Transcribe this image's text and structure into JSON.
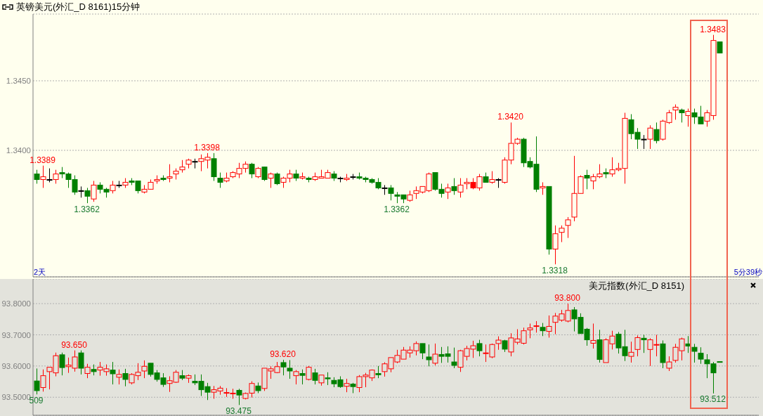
{
  "chart_data": [
    {
      "type": "candlestick",
      "title": "英镑美元(外汇_D 8161)15分钟",
      "categories": [
        null,
        null,
        null,
        null,
        null,
        null,
        null,
        null,
        null,
        null,
        null,
        null,
        null,
        null,
        null,
        null,
        null,
        null,
        null,
        null,
        null,
        null,
        null,
        null,
        null,
        null,
        null,
        null,
        null,
        null,
        null,
        null,
        null,
        null,
        null,
        null,
        null,
        null,
        null,
        null,
        null,
        null,
        null,
        null,
        null,
        null,
        null,
        null,
        null,
        null,
        null,
        null,
        null,
        null,
        null,
        null,
        null,
        null,
        null,
        null,
        null,
        null,
        null,
        null,
        null,
        null,
        null,
        null,
        null,
        null,
        null,
        null,
        null,
        null,
        null,
        null,
        null,
        null,
        null,
        null,
        null,
        null,
        null,
        null,
        null,
        null,
        null,
        null,
        null,
        null,
        null,
        null,
        null,
        null,
        null,
        null,
        null,
        null,
        null,
        null,
        null,
        null,
        null,
        null,
        null,
        null,
        null,
        null,
        null
      ],
      "ohlc": [
        [
          1.3383,
          1.3386,
          1.3376,
          1.3379
        ],
        [
          1.3379,
          1.3389,
          1.3373,
          1.3381
        ],
        [
          1.3379,
          1.3387,
          1.3377,
          1.3379
        ],
        [
          1.3379,
          1.3386,
          1.3376,
          1.3383
        ],
        [
          1.3384,
          1.3388,
          1.338,
          1.3383
        ],
        [
          1.3383,
          1.3384,
          1.3373,
          1.3379
        ],
        [
          1.3379,
          1.3382,
          1.3368,
          1.337
        ],
        [
          1.3371,
          1.3374,
          1.3366,
          1.3371
        ],
        [
          1.3371,
          1.3373,
          1.3362,
          1.3367
        ],
        [
          1.3365,
          1.3378,
          1.3363,
          1.3375
        ],
        [
          1.3375,
          1.3377,
          1.3369,
          1.3372
        ],
        [
          1.3372,
          1.3373,
          1.3366,
          1.337
        ],
        [
          1.3371,
          1.3378,
          1.3369,
          1.3375
        ],
        [
          1.3375,
          1.3378,
          1.3373,
          1.3375
        ],
        [
          1.3375,
          1.338,
          1.3373,
          1.3377
        ],
        [
          1.3378,
          1.338,
          1.3375,
          1.3377
        ],
        [
          1.3378,
          1.3378,
          1.3369,
          1.3371
        ],
        [
          1.337,
          1.3375,
          1.3369,
          1.3372
        ],
        [
          1.3372,
          1.3379,
          1.3372,
          1.3377
        ],
        [
          1.3378,
          1.3382,
          1.3376,
          1.3379
        ],
        [
          1.338,
          1.3382,
          1.3378,
          1.3379
        ],
        [
          1.338,
          1.339,
          1.3377,
          1.3381
        ],
        [
          1.3383,
          1.3387,
          1.3379,
          1.3385
        ],
        [
          1.3386,
          1.3393,
          1.3384,
          1.3388
        ],
        [
          1.339,
          1.3394,
          1.3387,
          1.3393
        ],
        [
          1.3392,
          1.3394,
          1.3387,
          1.3392
        ],
        [
          1.3392,
          1.3397,
          1.3385,
          1.3394
        ],
        [
          1.3393,
          1.3398,
          1.3387,
          1.3395
        ],
        [
          1.3394,
          1.3398,
          1.3378,
          1.3381
        ],
        [
          1.338,
          1.3384,
          1.3373,
          1.3377
        ],
        [
          1.3378,
          1.3384,
          1.3377,
          1.338
        ],
        [
          1.3381,
          1.3385,
          1.338,
          1.3384
        ],
        [
          1.3383,
          1.3391,
          1.338,
          1.3387
        ],
        [
          1.3387,
          1.3392,
          1.3384,
          1.339
        ],
        [
          1.339,
          1.3391,
          1.338,
          1.3383
        ],
        [
          1.3381,
          1.3388,
          1.338,
          1.3387
        ],
        [
          1.3388,
          1.3388,
          1.3378,
          1.3379
        ],
        [
          1.338,
          1.3384,
          1.3373,
          1.3383
        ],
        [
          1.3383,
          1.3384,
          1.3375,
          1.3376
        ],
        [
          1.3377,
          1.3381,
          1.3373,
          1.338
        ],
        [
          1.338,
          1.3386,
          1.3377,
          1.3383
        ],
        [
          1.3383,
          1.3386,
          1.3378,
          1.338
        ],
        [
          1.338,
          1.3384,
          1.3379,
          1.3381
        ],
        [
          1.338,
          1.3381,
          1.3377,
          1.3379
        ],
        [
          1.3379,
          1.3384,
          1.3378,
          1.3381
        ],
        [
          1.338,
          1.3386,
          1.338,
          1.3381
        ],
        [
          1.338,
          1.3386,
          1.338,
          1.3384
        ],
        [
          1.3383,
          1.3385,
          1.3378,
          1.338
        ],
        [
          1.338,
          1.3381,
          1.3377,
          1.338
        ],
        [
          1.3379,
          1.3383,
          1.3378,
          1.338
        ],
        [
          1.3381,
          1.3383,
          1.3379,
          1.3381
        ],
        [
          1.3381,
          1.3384,
          1.3379,
          1.338
        ],
        [
          1.338,
          1.3381,
          1.3377,
          1.3379
        ],
        [
          1.3379,
          1.338,
          1.3376,
          1.3377
        ],
        [
          1.3377,
          1.338,
          1.3372,
          1.3373
        ],
        [
          1.3373,
          1.3375,
          1.3368,
          1.3373
        ],
        [
          1.3373,
          1.3375,
          1.3364,
          1.3369
        ],
        [
          1.3368,
          1.337,
          1.3362,
          1.3367
        ],
        [
          1.3368,
          1.3368,
          1.3362,
          1.3365
        ],
        [
          1.3364,
          1.3371,
          1.3363,
          1.3368
        ],
        [
          1.3369,
          1.3374,
          1.3365,
          1.3371
        ],
        [
          1.337,
          1.3374,
          1.3369,
          1.3374
        ],
        [
          1.3371,
          1.3384,
          1.337,
          1.3383
        ],
        [
          1.3384,
          1.3384,
          1.3371,
          1.3372
        ],
        [
          1.3372,
          1.3376,
          1.3366,
          1.3369
        ],
        [
          1.337,
          1.3376,
          1.3365,
          1.3373
        ],
        [
          1.3374,
          1.338,
          1.3368,
          1.3371
        ],
        [
          1.337,
          1.338,
          1.3366,
          1.3375
        ],
        [
          1.3376,
          1.338,
          1.3372,
          1.3377
        ],
        [
          1.3377,
          1.338,
          1.3372,
          1.3373
        ],
        [
          1.3373,
          1.3383,
          1.3371,
          1.3381
        ],
        [
          1.3381,
          1.3384,
          1.3377,
          1.3377
        ],
        [
          1.3377,
          1.3385,
          1.3376,
          1.3379
        ],
        [
          1.3379,
          1.338,
          1.3373,
          1.3379
        ],
        [
          1.3377,
          1.3395,
          1.3376,
          1.3393
        ],
        [
          1.3393,
          1.342,
          1.339,
          1.3405
        ],
        [
          1.3405,
          1.3409,
          1.3404,
          1.3408
        ],
        [
          1.3408,
          1.3409,
          1.3388,
          1.3391
        ],
        [
          1.3392,
          1.3395,
          1.3387,
          1.3388
        ],
        [
          1.339,
          1.341,
          1.337,
          1.3372
        ],
        [
          1.3373,
          1.3377,
          1.3368,
          1.3374
        ],
        [
          1.3374,
          1.3374,
          1.3325,
          1.3329
        ],
        [
          1.3329,
          1.3346,
          1.3318,
          1.334
        ],
        [
          1.3341,
          1.3346,
          1.3334,
          1.3344
        ],
        [
          1.3346,
          1.3352,
          1.3337,
          1.335
        ],
        [
          1.3352,
          1.3396,
          1.3349,
          1.3369
        ],
        [
          1.3369,
          1.3382,
          1.3369,
          1.3381
        ],
        [
          1.3382,
          1.3386,
          1.3372,
          1.338
        ],
        [
          1.3378,
          1.3383,
          1.3372,
          1.3381
        ],
        [
          1.3381,
          1.339,
          1.338,
          1.3383
        ],
        [
          1.3384,
          1.3387,
          1.338,
          1.3383
        ],
        [
          1.3383,
          1.3395,
          1.3381,
          1.3386
        ],
        [
          1.3386,
          1.3391,
          1.3385,
          1.3387
        ],
        [
          1.3387,
          1.3427,
          1.3376,
          1.3423
        ],
        [
          1.3422,
          1.3426,
          1.3408,
          1.3412
        ],
        [
          1.3413,
          1.3416,
          1.3401,
          1.3408
        ],
        [
          1.3408,
          1.3411,
          1.3401,
          1.3408
        ],
        [
          1.3408,
          1.3418,
          1.3401,
          1.3416
        ],
        [
          1.3415,
          1.342,
          1.3405,
          1.3407
        ],
        [
          1.3408,
          1.3422,
          1.3407,
          1.3421
        ],
        [
          1.342,
          1.3429,
          1.3419,
          1.3427
        ],
        [
          1.3429,
          1.3433,
          1.3422,
          1.3431
        ],
        [
          1.3429,
          1.343,
          1.342,
          1.3427
        ],
        [
          1.3425,
          1.343,
          1.3417,
          1.3428
        ],
        [
          1.3427,
          1.343,
          1.3419,
          1.3424
        ],
        [
          1.3424,
          1.3432,
          1.3419,
          1.3419
        ],
        [
          1.3421,
          1.3429,
          1.3417,
          1.3427
        ],
        [
          1.3425,
          1.3483,
          1.3422,
          1.3479
        ],
        [
          1.3478,
          1.3478,
          1.347,
          1.347
        ]
      ],
      "colors": [
        "#008000",
        "#ff0000",
        "#000000",
        "#ff0000",
        "#008000",
        "#008000",
        "#008000",
        "#000000",
        "#008000",
        "#ff0000",
        "#008000",
        "#008000",
        "#ff0000",
        "#000000",
        "#ff0000",
        "#008000",
        "#008000",
        "#ff0000",
        "#ff0000",
        "#ff0000",
        "#008000",
        "#ff0000",
        "#ff0000",
        "#ff0000",
        "#ff0000",
        "#000000",
        "#ff0000",
        "#ff0000",
        "#008000",
        "#008000",
        "#ff0000",
        "#ff0000",
        "#ff0000",
        "#ff0000",
        "#008000",
        "#ff0000",
        "#008000",
        "#ff0000",
        "#008000",
        "#ff0000",
        "#ff0000",
        "#008000",
        "#ff0000",
        "#008000",
        "#ff0000",
        "#ff0000",
        "#ff0000",
        "#008000",
        "#000000",
        "#ff0000",
        "#000000",
        "#008000",
        "#008000",
        "#008000",
        "#008000",
        "#000000",
        "#008000",
        "#008000",
        "#008000",
        "#ff0000",
        "#ff0000",
        "#ff0000",
        "#ff0000",
        "#008000",
        "#008000",
        "#ff0000",
        "#008000",
        "#ff0000",
        "#ff0000",
        "#ff0000",
        "#ff0000",
        "#008000",
        "#ff0000",
        "#000000",
        "#ff0000",
        "#ff0000",
        "#ff0000",
        "#008000",
        "#008000",
        "#008000",
        "#ff0000",
        "#008000",
        "#ff0000",
        "#ff0000",
        "#ff0000",
        "#ff0000",
        "#ff0000",
        "#008000",
        "#ff0000",
        "#ff0000",
        "#008000",
        "#ff0000",
        "#ff0000",
        "#ff0000",
        "#008000",
        "#008000",
        "#000000",
        "#ff0000",
        "#008000",
        "#ff0000",
        "#ff0000",
        "#ff0000",
        "#008000",
        "#ff0000",
        "#008000",
        "#008000",
        "#ff0000",
        "#ff0000",
        "#008000"
      ],
      "ylim": [
        1.3309,
        1.3498
      ],
      "yticks": [
        {
          "value": 1.34,
          "label": "1.3400"
        },
        {
          "value": 1.345,
          "label": "1.3450"
        }
      ],
      "grid": "y",
      "annotations": [
        {
          "text": "1.3389",
          "y": 1.3389
        },
        {
          "text": "1.3362",
          "y": 1.3362
        },
        {
          "text": "1.3398",
          "y": 1.3398
        },
        {
          "text": "1.3362",
          "y": 1.3362
        },
        {
          "text": "1.3420",
          "y": 1.342
        },
        {
          "text": "1.3318",
          "y": 1.3318
        },
        {
          "text": "1.3483",
          "y": 1.3483
        },
        "2天",
        "5分39秒"
      ]
    },
    {
      "type": "candlestick",
      "title": "美元指数(外汇_D 8151)",
      "categories": [
        null,
        null,
        null,
        null,
        null,
        null,
        null,
        null,
        null,
        null,
        null,
        null,
        null,
        null,
        null,
        null,
        null,
        null,
        null,
        null,
        null,
        null,
        null,
        null,
        null,
        null,
        null,
        null,
        null,
        null,
        null,
        null,
        null,
        null,
        null,
        null,
        null,
        null,
        null,
        null,
        null,
        null,
        null,
        null,
        null,
        null,
        null,
        null,
        null,
        null,
        null,
        null,
        null,
        null,
        null,
        null,
        null,
        null,
        null,
        null,
        null,
        null,
        null,
        null,
        null,
        null,
        null,
        null,
        null,
        null,
        null,
        null,
        null,
        null,
        null,
        null,
        null,
        null,
        null,
        null,
        null,
        null,
        null,
        null,
        null,
        null,
        null,
        null,
        null,
        null,
        null,
        null,
        null,
        null,
        null,
        null,
        null,
        null,
        null,
        null,
        null,
        null,
        null,
        null,
        null,
        null,
        null,
        null,
        null
      ],
      "ohlc": [
        [
          93.552,
          93.592,
          93.509,
          93.521
        ],
        [
          93.531,
          93.589,
          93.518,
          93.569
        ],
        [
          93.582,
          93.596,
          93.525,
          93.596
        ],
        [
          93.578,
          93.643,
          93.567,
          93.633
        ],
        [
          93.636,
          93.643,
          93.57,
          93.595
        ],
        [
          93.598,
          93.627,
          93.578,
          93.603
        ],
        [
          93.593,
          93.65,
          93.582,
          93.629
        ],
        [
          93.642,
          93.65,
          93.573,
          93.593
        ],
        [
          93.576,
          93.607,
          93.561,
          93.596
        ],
        [
          93.589,
          93.605,
          93.57,
          93.582
        ],
        [
          93.587,
          93.613,
          93.569,
          93.596
        ],
        [
          93.582,
          93.605,
          93.569,
          93.591
        ],
        [
          93.587,
          93.613,
          93.541,
          93.575
        ],
        [
          93.564,
          93.589,
          93.541,
          93.573
        ],
        [
          93.576,
          93.591,
          93.535,
          93.557
        ],
        [
          93.546,
          93.577,
          93.541,
          93.573
        ],
        [
          93.569,
          93.609,
          93.555,
          93.58
        ],
        [
          93.584,
          93.618,
          93.561,
          93.599
        ],
        [
          93.609,
          93.609,
          93.566,
          93.573
        ],
        [
          93.578,
          93.587,
          93.55,
          93.557
        ],
        [
          93.562,
          93.577,
          93.533,
          93.541
        ],
        [
          93.544,
          93.567,
          93.517,
          93.553
        ],
        [
          93.548,
          93.587,
          93.546,
          93.58
        ],
        [
          93.569,
          93.587,
          93.555,
          93.561
        ],
        [
          93.561,
          93.573,
          93.546,
          93.569
        ],
        [
          93.551,
          93.573,
          93.539,
          93.546
        ],
        [
          93.551,
          93.573,
          93.504,
          93.524
        ],
        [
          93.534,
          93.546,
          93.491,
          93.516
        ],
        [
          93.516,
          93.536,
          93.495,
          93.524
        ],
        [
          93.52,
          93.536,
          93.508,
          93.529
        ],
        [
          93.514,
          93.529,
          93.501,
          93.515
        ],
        [
          93.512,
          93.527,
          93.495,
          93.513
        ],
        [
          93.522,
          93.527,
          93.475,
          93.507
        ],
        [
          93.496,
          93.515,
          93.493,
          93.512
        ],
        [
          93.513,
          93.551,
          93.499,
          93.544
        ],
        [
          93.536,
          93.547,
          93.513,
          93.521
        ],
        [
          93.528,
          93.593,
          93.52,
          93.593
        ],
        [
          93.584,
          93.599,
          93.559,
          93.591
        ],
        [
          93.579,
          93.613,
          93.577,
          93.598
        ],
        [
          93.611,
          93.62,
          93.57,
          93.597
        ],
        [
          93.593,
          93.619,
          93.559,
          93.584
        ],
        [
          93.569,
          93.587,
          93.541,
          93.582
        ],
        [
          93.576,
          93.589,
          93.541,
          93.57
        ],
        [
          93.557,
          93.6,
          93.554,
          93.596
        ],
        [
          93.578,
          93.591,
          93.541,
          93.554
        ],
        [
          93.546,
          93.571,
          93.537,
          93.571
        ],
        [
          93.562,
          93.58,
          93.539,
          93.559
        ],
        [
          93.554,
          93.564,
          93.532,
          93.543
        ],
        [
          93.556,
          93.567,
          93.53,
          93.534
        ],
        [
          93.535,
          93.559,
          93.516,
          93.544
        ],
        [
          93.542,
          93.546,
          93.513,
          93.534
        ],
        [
          93.531,
          93.571,
          93.516,
          93.566
        ],
        [
          93.566,
          93.578,
          93.532,
          93.571
        ],
        [
          93.562,
          93.589,
          93.552,
          93.587
        ],
        [
          93.576,
          93.6,
          93.561,
          93.572
        ],
        [
          93.582,
          93.612,
          93.566,
          93.607
        ],
        [
          93.591,
          93.627,
          93.58,
          93.627
        ],
        [
          93.613,
          93.652,
          93.609,
          93.634
        ],
        [
          93.622,
          93.661,
          93.622,
          93.651
        ],
        [
          93.642,
          93.663,
          93.627,
          93.651
        ],
        [
          93.649,
          93.679,
          93.634,
          93.672
        ],
        [
          93.672,
          93.672,
          93.622,
          93.642
        ],
        [
          93.629,
          93.669,
          93.599,
          93.62
        ],
        [
          93.609,
          93.672,
          93.602,
          93.638
        ],
        [
          93.637,
          93.661,
          93.61,
          93.631
        ],
        [
          93.639,
          93.663,
          93.611,
          93.631
        ],
        [
          93.613,
          93.659,
          93.593,
          93.602
        ],
        [
          93.596,
          93.652,
          93.581,
          93.649
        ],
        [
          93.631,
          93.665,
          93.618,
          93.656
        ],
        [
          93.654,
          93.681,
          93.626,
          93.665
        ],
        [
          93.672,
          93.684,
          93.631,
          93.649
        ],
        [
          93.641,
          93.669,
          93.613,
          93.642
        ],
        [
          93.629,
          93.672,
          93.625,
          93.669
        ],
        [
          93.672,
          93.695,
          93.652,
          93.683
        ],
        [
          93.681,
          93.684,
          93.645,
          93.654
        ],
        [
          93.645,
          93.705,
          93.631,
          93.69
        ],
        [
          93.676,
          93.718,
          93.669,
          93.687
        ],
        [
          93.673,
          93.723,
          93.669,
          93.713
        ],
        [
          93.716,
          93.736,
          93.689,
          93.722
        ],
        [
          93.728,
          93.744,
          93.707,
          93.729
        ],
        [
          93.724,
          93.738,
          93.696,
          93.713
        ],
        [
          93.711,
          93.762,
          93.691,
          93.727
        ],
        [
          93.74,
          93.77,
          93.702,
          93.76
        ],
        [
          93.747,
          93.78,
          93.742,
          93.767
        ],
        [
          93.744,
          93.8,
          93.74,
          93.778
        ],
        [
          93.78,
          93.789,
          93.711,
          93.751
        ],
        [
          93.756,
          93.769,
          93.704,
          93.704
        ],
        [
          93.718,
          93.722,
          93.665,
          93.684
        ],
        [
          93.673,
          93.736,
          93.656,
          93.682
        ],
        [
          93.684,
          93.716,
          93.611,
          93.621
        ],
        [
          93.611,
          93.689,
          93.611,
          93.684
        ],
        [
          93.671,
          93.713,
          93.653,
          93.696
        ],
        [
          93.702,
          93.709,
          93.64,
          93.658
        ],
        [
          93.662,
          93.716,
          93.616,
          93.633
        ],
        [
          93.631,
          93.678,
          93.611,
          93.644
        ],
        [
          93.653,
          93.698,
          93.631,
          93.691
        ],
        [
          93.689,
          93.7,
          93.642,
          93.684
        ],
        [
          93.653,
          93.689,
          93.6,
          93.684
        ],
        [
          93.668,
          93.7,
          93.631,
          93.669
        ],
        [
          93.671,
          93.682,
          93.593,
          93.611
        ],
        [
          93.593,
          93.631,
          93.584,
          93.613
        ],
        [
          93.618,
          93.671,
          93.611,
          93.66
        ],
        [
          93.649,
          93.691,
          93.618,
          93.687
        ],
        [
          93.671,
          93.696,
          93.642,
          93.664
        ],
        [
          93.66,
          93.671,
          93.611,
          93.647
        ],
        [
          93.641,
          93.66,
          93.607,
          93.622
        ],
        [
          93.62,
          93.638,
          93.561,
          93.607
        ],
        [
          93.607,
          93.613,
          93.512,
          93.578
        ],
        [
          93.614,
          93.614,
          93.613,
          93.613
        ]
      ],
      "colors": [
        "#008000",
        "#ff0000",
        "#ff0000",
        "#ff0000",
        "#008000",
        "#ff0000",
        "#ff0000",
        "#008000",
        "#ff0000",
        "#008000",
        "#ff0000",
        "#ff0000",
        "#008000",
        "#ff0000",
        "#008000",
        "#ff0000",
        "#ff0000",
        "#ff0000",
        "#008000",
        "#008000",
        "#008000",
        "#ff0000",
        "#ff0000",
        "#008000",
        "#ff0000",
        "#008000",
        "#008000",
        "#008000",
        "#ff0000",
        "#ff0000",
        "#ff0000",
        "#ff0000",
        "#008000",
        "#ff0000",
        "#ff0000",
        "#008000",
        "#ff0000",
        "#ff0000",
        "#ff0000",
        "#008000",
        "#008000",
        "#ff0000",
        "#008000",
        "#ff0000",
        "#008000",
        "#ff0000",
        "#008000",
        "#008000",
        "#008000",
        "#ff0000",
        "#008000",
        "#ff0000",
        "#ff0000",
        "#ff0000",
        "#008000",
        "#ff0000",
        "#ff0000",
        "#ff0000",
        "#ff0000",
        "#ff0000",
        "#ff0000",
        "#008000",
        "#008000",
        "#ff0000",
        "#008000",
        "#008000",
        "#008000",
        "#ff0000",
        "#ff0000",
        "#ff0000",
        "#008000",
        "#ff0000",
        "#ff0000",
        "#ff0000",
        "#008000",
        "#ff0000",
        "#ff0000",
        "#ff0000",
        "#ff0000",
        "#ff0000",
        "#008000",
        "#ff0000",
        "#ff0000",
        "#ff0000",
        "#ff0000",
        "#008000",
        "#008000",
        "#008000",
        "#ff0000",
        "#008000",
        "#ff0000",
        "#ff0000",
        "#008000",
        "#008000",
        "#ff0000",
        "#ff0000",
        "#008000",
        "#ff0000",
        "#ff0000",
        "#008000",
        "#ff0000",
        "#ff0000",
        "#ff0000",
        "#008000",
        "#008000",
        "#008000",
        "#008000",
        "#008000",
        "#008000"
      ],
      "ylim": [
        93.442,
        93.879
      ],
      "yticks": [
        {
          "value": 93.5,
          "label": "93.5000"
        },
        {
          "value": 93.6,
          "label": "93.6000"
        },
        {
          "value": 93.7,
          "label": "93.7000"
        },
        {
          "value": 93.8,
          "label": "93.8000"
        }
      ],
      "grid": "y",
      "annotations": [
        {
          "text": "509",
          "y": 93.509
        },
        {
          "text": "93.650",
          "y": 93.65
        },
        {
          "text": "93.475",
          "y": 93.475
        },
        {
          "text": "93.620",
          "y": 93.62
        },
        {
          "text": "93.800",
          "y": 93.8
        },
        {
          "text": "93.512",
          "y": 93.512
        }
      ]
    }
  ]
}
